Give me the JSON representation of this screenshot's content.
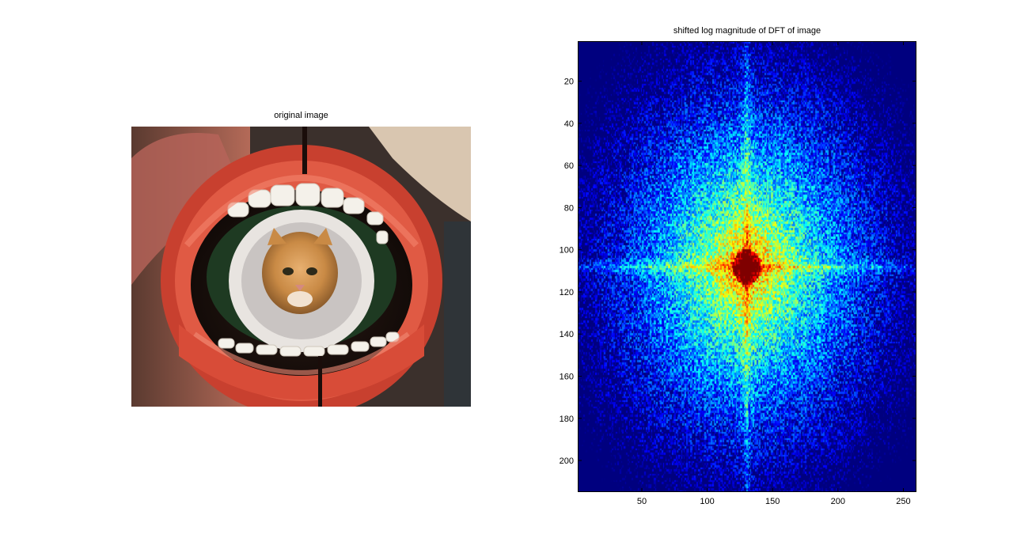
{
  "left_panel": {
    "title": "original image",
    "image_description_icon": "photo-icon"
  },
  "right_panel": {
    "title": "shifted log magnitude of DFT of image"
  },
  "chart_data": {
    "type": "heatmap",
    "title": "shifted log magnitude of DFT of image",
    "xlabel": "",
    "ylabel": "",
    "xlim": [
      1,
      260
    ],
    "ylim": [
      215,
      1
    ],
    "y_reversed": true,
    "x_ticks": [
      50,
      100,
      150,
      200,
      250
    ],
    "y_ticks": [
      20,
      40,
      60,
      80,
      100,
      120,
      140,
      160,
      180,
      200
    ],
    "center": {
      "x": 130,
      "y": 108
    },
    "colormap": "jet",
    "grid": false
  }
}
